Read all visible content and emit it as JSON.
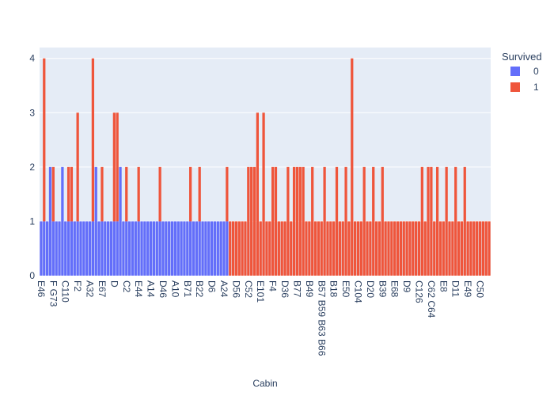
{
  "chart_data": {
    "type": "histogram",
    "x_label": "Cabin",
    "legend_title": "Survived",
    "legend_position": "right",
    "ylim": [
      0,
      4.2
    ],
    "yticks": [
      0,
      1,
      2,
      3,
      4
    ],
    "grid": true,
    "categories": [
      "E46",
      null,
      null,
      null,
      "F G73",
      null,
      null,
      null,
      "C110",
      null,
      null,
      null,
      "F2",
      null,
      null,
      null,
      "A32",
      null,
      null,
      null,
      "E67",
      null,
      null,
      null,
      "D",
      null,
      null,
      null,
      "C2",
      null,
      null,
      null,
      "E44",
      null,
      null,
      null,
      "A14",
      null,
      null,
      null,
      "D46",
      null,
      null,
      null,
      "A10",
      null,
      null,
      null,
      "B71",
      null,
      null,
      null,
      "B22",
      null,
      null,
      null,
      "D6",
      null,
      null,
      null,
      "A24",
      null,
      null,
      null,
      "D56",
      null,
      null,
      null,
      "C52",
      null,
      null,
      null,
      "E101",
      null,
      null,
      null,
      "F4",
      null,
      null,
      null,
      "D36",
      null,
      null,
      null,
      "B77",
      null,
      null,
      null,
      "B49",
      null,
      null,
      null,
      "B57 B59 B63 B66",
      null,
      null,
      null,
      "B18",
      null,
      null,
      null,
      "E50",
      null,
      null,
      null,
      "C104",
      null,
      null,
      null,
      "D20",
      null,
      null,
      null,
      "B39",
      null,
      null,
      null,
      "E68",
      null,
      null,
      null,
      "D9",
      null,
      null,
      null,
      "C126",
      null,
      null,
      null,
      "C62 C64",
      null,
      null,
      null,
      "E8",
      null,
      null,
      null,
      "D11",
      null,
      null,
      null,
      "E49",
      null,
      null,
      null,
      "C50",
      null,
      null,
      null
    ],
    "series": [
      {
        "name": "0",
        "color": "#636efa",
        "values": [
          1,
          1,
          1,
          2,
          1,
          1,
          1,
          2,
          1,
          1,
          1,
          1,
          1,
          1,
          1,
          1,
          1,
          1,
          2,
          1,
          1,
          1,
          1,
          1,
          1,
          1,
          2,
          1,
          1,
          1,
          1,
          1,
          1,
          1,
          1,
          1,
          1,
          1,
          1,
          1,
          1,
          1,
          1,
          1,
          1,
          1,
          1,
          1,
          1,
          1,
          1,
          1,
          1,
          1,
          1,
          1,
          1,
          1,
          1,
          1,
          1,
          1,
          null,
          null,
          null,
          null,
          null,
          null,
          null,
          null,
          null,
          null,
          null,
          null,
          null,
          null,
          null,
          null,
          null,
          null,
          null,
          null,
          null,
          null,
          null,
          null,
          null,
          null,
          null,
          null,
          null,
          null,
          null,
          null,
          null,
          null,
          null,
          null,
          null,
          null,
          null,
          null,
          null,
          null,
          null,
          null,
          null,
          null,
          null,
          null,
          null,
          null,
          null,
          null,
          null,
          null,
          null,
          null,
          null,
          null,
          null,
          null,
          null,
          null,
          null,
          null,
          null,
          null,
          null,
          null,
          null,
          null,
          null,
          null,
          null,
          null,
          null,
          null,
          null,
          null,
          null,
          null,
          null,
          null
        ]
      },
      {
        "name": "1",
        "color": "#ef553b",
        "values": [
          null,
          3,
          null,
          null,
          1,
          null,
          null,
          null,
          null,
          1,
          1,
          null,
          2,
          null,
          null,
          null,
          null,
          3,
          null,
          null,
          1,
          null,
          null,
          null,
          2,
          2,
          null,
          null,
          1,
          null,
          null,
          null,
          1,
          null,
          null,
          null,
          null,
          null,
          null,
          1,
          null,
          null,
          null,
          null,
          null,
          null,
          null,
          null,
          null,
          1,
          null,
          null,
          1,
          null,
          null,
          null,
          null,
          null,
          null,
          null,
          null,
          1,
          1,
          1,
          1,
          1,
          1,
          1,
          2,
          2,
          2,
          3,
          1,
          3,
          1,
          1,
          2,
          2,
          1,
          1,
          1,
          2,
          1,
          2,
          2,
          2,
          2,
          1,
          1,
          2,
          1,
          1,
          1,
          2,
          1,
          1,
          1,
          2,
          1,
          1,
          2,
          1,
          4,
          1,
          1,
          1,
          2,
          1,
          1,
          2,
          1,
          1,
          2,
          1,
          1,
          1,
          1,
          1,
          1,
          1,
          1,
          1,
          1,
          1,
          1,
          2,
          1,
          2,
          2,
          1,
          2,
          1,
          1,
          2,
          1,
          1,
          2,
          1,
          1,
          2,
          1,
          1,
          1,
          1,
          1,
          1,
          1,
          1
        ]
      }
    ]
  }
}
